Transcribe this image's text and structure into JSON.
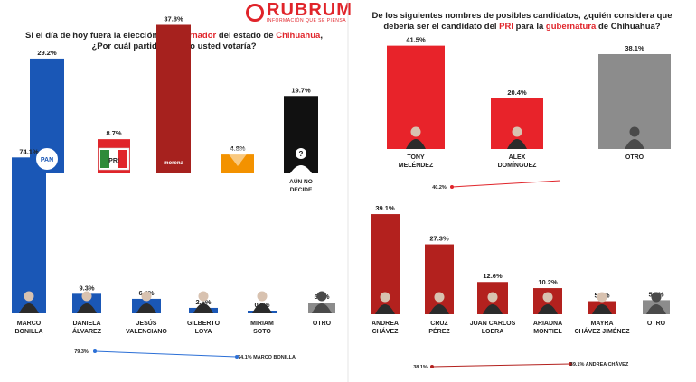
{
  "brand": {
    "name": "RUBRUM",
    "tagline": "INFORMACIÓN QUE SE PIENSA",
    "color": "#e0242a"
  },
  "left_title": {
    "line1_a": "Si el día de hoy fuera la elección a ",
    "line1_b": "Gobernador",
    "line1_c": " del estado de ",
    "line1_d": "Chihuahua",
    "line1_e": ",",
    "line2": "¿Por cuál partido político usted votaría?"
  },
  "right_title": {
    "line1": "De los siguientes nombres de posibles candidatos, ¿quién considera que",
    "line2_a": "debería ser el candidato del ",
    "line2_b": "PRI",
    "line2_c": " para la ",
    "line2_d": "gubernatura",
    "line2_e": " de Chihuahua?"
  },
  "chart_data": [
    {
      "type": "bar",
      "categories": [
        "PAN",
        "PRI",
        "MORENA",
        "MC",
        "AÚN NO DECIDE"
      ],
      "values": [
        29.2,
        8.7,
        37.8,
        4.8,
        19.7
      ],
      "value_labels": [
        "29.2%",
        "8.7%",
        "37.8%",
        "4.8%",
        "19.7%"
      ],
      "category_labels": [
        "",
        "",
        "",
        "",
        "AÚN NO|DECIDE"
      ],
      "colors": [
        "#1a57b6",
        "#e0242a",
        "#a6211e",
        "#f39200",
        "#111111"
      ],
      "ylim": [
        0,
        40
      ]
    },
    {
      "type": "bar",
      "categories": [
        "MARCO BONILLA",
        "DANIELA ÁLVAREZ",
        "JESÚS VALENCIANO",
        "GILBERTO LOYA",
        "MIRIAM SOTO",
        "OTRO"
      ],
      "values": [
        74.1,
        9.3,
        6.9,
        2.6,
        0.8,
        5.1
      ],
      "value_labels": [
        "74.1%",
        "9.3%",
        "6.9%",
        "2.6%",
        "0.8%",
        "5.1%"
      ],
      "category_labels": [
        "MARCO|BONILLA",
        "DANIELA|ÁLVAREZ",
        "JESÚS|VALENCIANO",
        "GILBERTO|LOYA",
        "MIRIAM|SOTO",
        "OTRO"
      ],
      "colors": [
        "#1a57b6",
        "#1a57b6",
        "#1a57b6",
        "#1a57b6",
        "#1a57b6",
        "#8c8c8c"
      ],
      "ylim": [
        0,
        80
      ],
      "trend": {
        "start_label": "79.3%",
        "end_label": "74.1% MARCO BONILLA",
        "color": "#2b6fd6"
      }
    },
    {
      "type": "bar",
      "categories": [
        "TONY MELÉNDEZ",
        "ALEX DOMÍNGUEZ",
        "OTRO"
      ],
      "values": [
        41.5,
        20.4,
        38.1
      ],
      "value_labels": [
        "41.5%",
        "20.4%",
        "38.1%"
      ],
      "category_labels": [
        "TONY|MELÉNDEZ",
        "ALEX|DOMÍNGUEZ",
        "OTRO"
      ],
      "colors": [
        "#e8232a",
        "#e8232a",
        "#8c8c8c"
      ],
      "ylim": [
        0,
        45
      ],
      "trend": {
        "start_label": "40.2%",
        "color": "#e0242a"
      }
    },
    {
      "type": "bar",
      "categories": [
        "ANDREA CHÁVEZ",
        "CRUZ PÉREZ",
        "JUAN CARLOS LOERA",
        "ARIADNA MONTIEL",
        "MAYRA CHÁVEZ JIMÉNEZ",
        "OTRO"
      ],
      "values": [
        39.1,
        27.3,
        12.6,
        10.2,
        5.1,
        5.5
      ],
      "value_labels": [
        "39.1%",
        "27.3%",
        "12.6%",
        "10.2%",
        "5.1%",
        "5.5%"
      ],
      "category_labels": [
        "ANDREA|CHÁVEZ",
        "CRUZ|PÉREZ",
        "JUAN CARLOS|LOERA",
        "ARIADNA|MONTIEL",
        "MAYRA|CHÁVEZ JIMÉNEZ",
        "OTRO"
      ],
      "colors": [
        "#b3211e",
        "#b3211e",
        "#b3211e",
        "#b3211e",
        "#b3211e",
        "#8c8c8c"
      ],
      "ylim": [
        0,
        45
      ],
      "trend": {
        "start_label": "38.1%",
        "end_label": "39.1% ANDREA CHÁVEZ",
        "color": "#b3211e"
      }
    }
  ],
  "party_badges": {
    "pan": "PAN",
    "pri": "PRI",
    "morena": "morena"
  }
}
